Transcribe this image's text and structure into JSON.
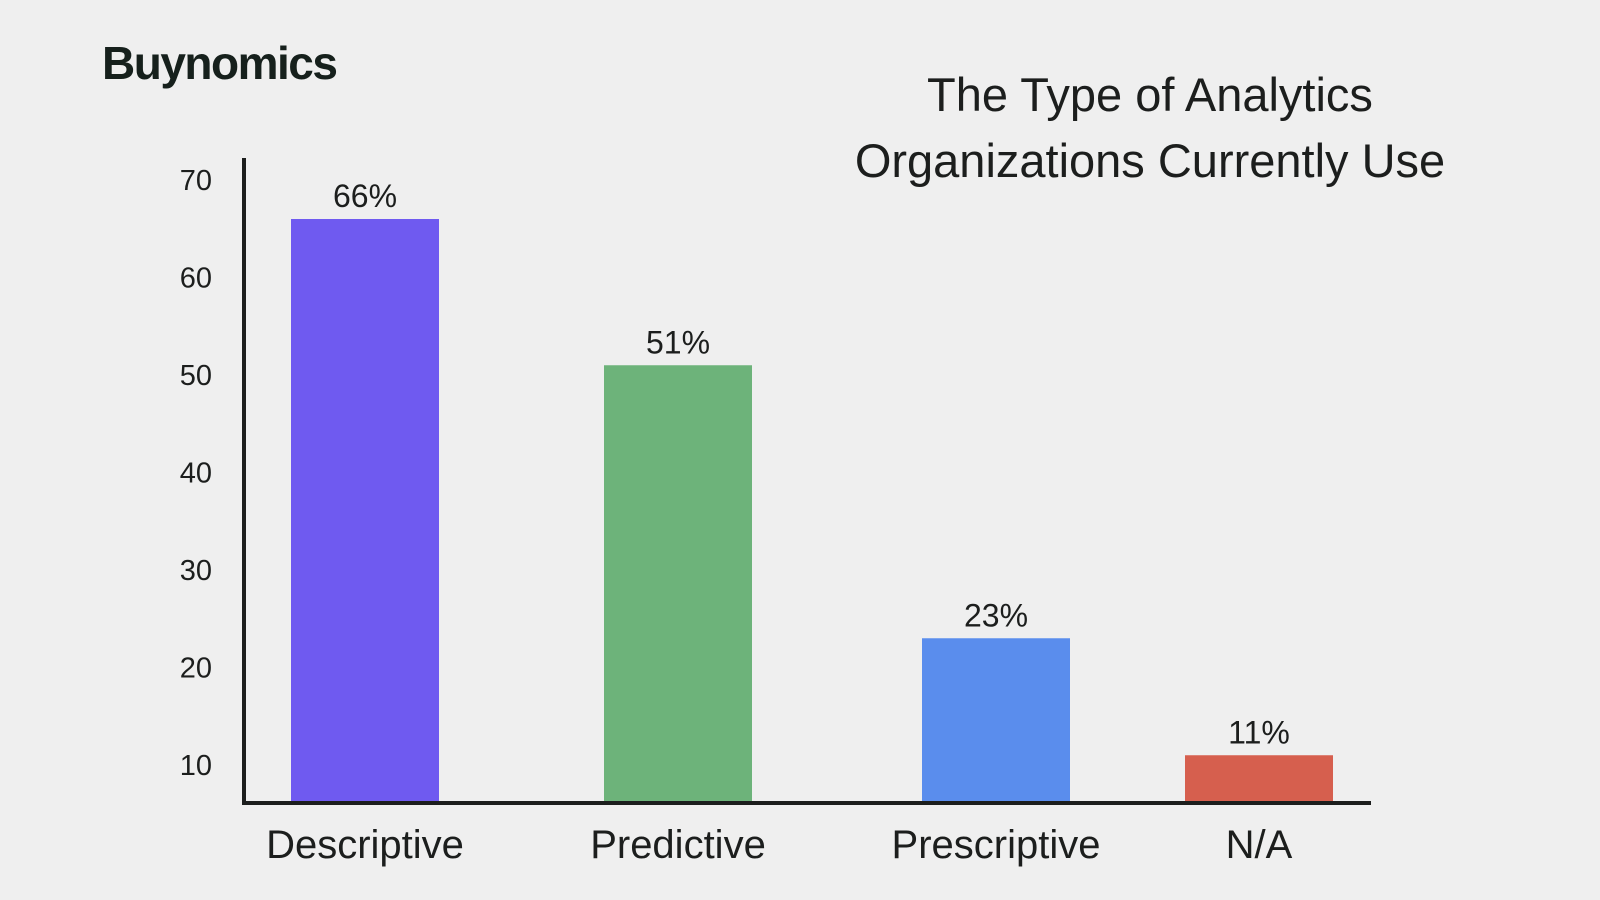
{
  "brand": {
    "name": "Buynomics"
  },
  "chart_data": {
    "type": "bar",
    "title_lines": [
      "The Type of Analytics",
      "Organizations Currently Use"
    ],
    "categories": [
      "Descriptive",
      "Predictive",
      "Prescriptive",
      "N/A"
    ],
    "values": [
      66,
      51,
      23,
      11
    ],
    "value_labels": [
      "66%",
      "51%",
      "23%",
      "11%"
    ],
    "colors": [
      "#6f5af0",
      "#6db37a",
      "#5a8ded",
      "#d65f4e"
    ],
    "y_ticks": [
      10,
      20,
      30,
      40,
      50,
      60,
      70
    ],
    "xlabel": "",
    "ylabel": "",
    "grid": false,
    "legend": "none"
  }
}
